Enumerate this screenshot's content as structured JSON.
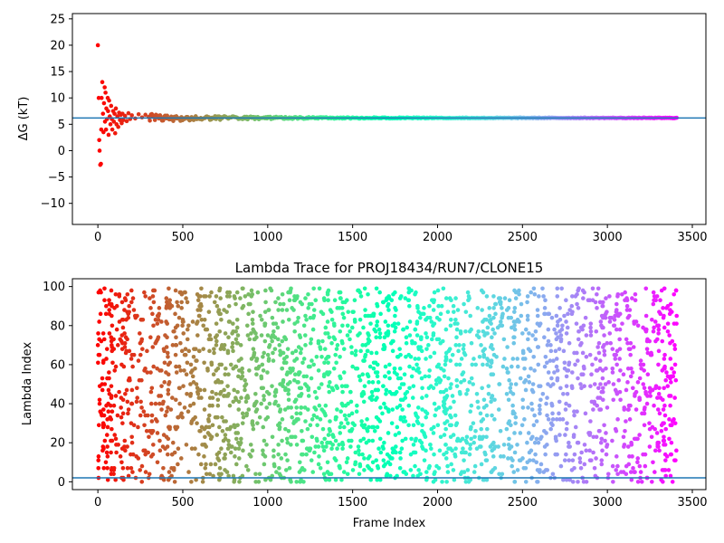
{
  "chart_data": [
    {
      "type": "scatter",
      "title": "",
      "xlabel": "",
      "ylabel": "ΔG (kT)",
      "xlim": [
        -150,
        3580
      ],
      "ylim": [
        -14,
        26
      ],
      "xticks": [
        0,
        500,
        1000,
        1500,
        2000,
        2500,
        3000,
        3500
      ],
      "yticks": [
        -10,
        -5,
        0,
        5,
        10,
        15,
        20,
        25
      ],
      "colormap": "rainbow",
      "reference_line": {
        "y": 6.2,
        "color": "#1f77b4"
      },
      "converged_value": 6.2,
      "n_frames": 3410,
      "points": [
        [
          0,
          20
        ],
        [
          5,
          10
        ],
        [
          8,
          2
        ],
        [
          10,
          0
        ],
        [
          14,
          -2.7
        ],
        [
          18,
          -2.5
        ],
        [
          20,
          4
        ],
        [
          22,
          10
        ],
        [
          26,
          13
        ],
        [
          30,
          7
        ],
        [
          33,
          3.5
        ],
        [
          36,
          9
        ],
        [
          40,
          12
        ],
        [
          42,
          5.5
        ],
        [
          45,
          11
        ],
        [
          48,
          4
        ],
        [
          50,
          8
        ],
        [
          54,
          6
        ],
        [
          58,
          10
        ],
        [
          60,
          7.5
        ],
        [
          63,
          3
        ],
        [
          66,
          9.5
        ],
        [
          70,
          6.5
        ],
        [
          74,
          5
        ],
        [
          78,
          8.5
        ],
        [
          82,
          6
        ],
        [
          85,
          4
        ],
        [
          90,
          7.5
        ],
        [
          94,
          5.5
        ],
        [
          98,
          7
        ],
        [
          102,
          3.3
        ],
        [
          106,
          8
        ],
        [
          110,
          5
        ],
        [
          115,
          6.5
        ],
        [
          120,
          4.5
        ],
        [
          125,
          7.2
        ],
        [
          130,
          5.8
        ],
        [
          135,
          6.8
        ],
        [
          140,
          5.2
        ],
        [
          145,
          7
        ],
        [
          150,
          5.8
        ],
        [
          160,
          6.6
        ],
        [
          170,
          5.6
        ],
        [
          180,
          7.1
        ],
        [
          190,
          6
        ],
        [
          200,
          6.7
        ],
        [
          220,
          6.1
        ],
        [
          240,
          6.9
        ],
        [
          260,
          6.3
        ],
        [
          280,
          6.8
        ],
        [
          300,
          6.4
        ]
      ]
    },
    {
      "type": "scatter",
      "title": "Lambda Trace for PROJ18434/RUN7/CLONE15",
      "xlabel": "Frame Index",
      "ylabel": "Lambda Index",
      "xlim": [
        -150,
        3580
      ],
      "ylim": [
        -4,
        104
      ],
      "xticks": [
        0,
        500,
        1000,
        1500,
        2000,
        2500,
        3000,
        3500
      ],
      "yticks": [
        0,
        20,
        40,
        60,
        80,
        100
      ],
      "colormap": "rainbow",
      "reference_line": {
        "y": 2,
        "color": "#1f77b4"
      },
      "n_frames": 3410,
      "n_lambda": 100
    }
  ]
}
